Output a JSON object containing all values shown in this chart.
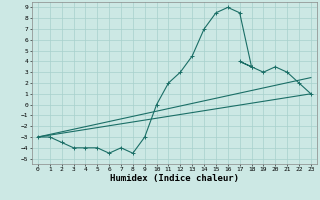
{
  "title": "",
  "xlabel": "Humidex (Indice chaleur)",
  "bg_color": "#cce8e4",
  "grid_color": "#a8d0cc",
  "line_color": "#1a6e66",
  "xlim": [
    -0.5,
    23.5
  ],
  "ylim": [
    -5.5,
    9.5
  ],
  "xticks": [
    0,
    1,
    2,
    3,
    4,
    5,
    6,
    7,
    8,
    9,
    10,
    11,
    12,
    13,
    14,
    15,
    16,
    17,
    18,
    19,
    20,
    21,
    22,
    23
  ],
  "yticks": [
    -5,
    -4,
    -3,
    -2,
    -1,
    0,
    1,
    2,
    3,
    4,
    5,
    6,
    7,
    8,
    9
  ],
  "curve1_x": [
    0,
    1,
    2,
    3,
    4,
    5,
    6,
    7,
    8,
    9,
    10,
    11,
    12,
    13,
    14,
    15,
    16,
    17,
    18,
    17,
    18,
    19,
    20,
    21,
    22,
    23
  ],
  "curve1_y": [
    -3,
    -3,
    -3.5,
    -4,
    -4,
    -4,
    -4.5,
    -4,
    -4.5,
    -3,
    0,
    2,
    3,
    4.5,
    7,
    8.5,
    9,
    8.5,
    3.5,
    4,
    3.5,
    3,
    3.5,
    3,
    2,
    1
  ],
  "curve2_x": [
    0,
    23
  ],
  "curve2_y": [
    -3,
    2.5
  ],
  "curve3_x": [
    0,
    23
  ],
  "curve3_y": [
    -3,
    1.0
  ],
  "marker": "+",
  "markersize": 3,
  "linewidth": 0.8,
  "tick_fontsize": 4.5,
  "xlabel_fontsize": 6.5,
  "xlabel_fontweight": "bold"
}
